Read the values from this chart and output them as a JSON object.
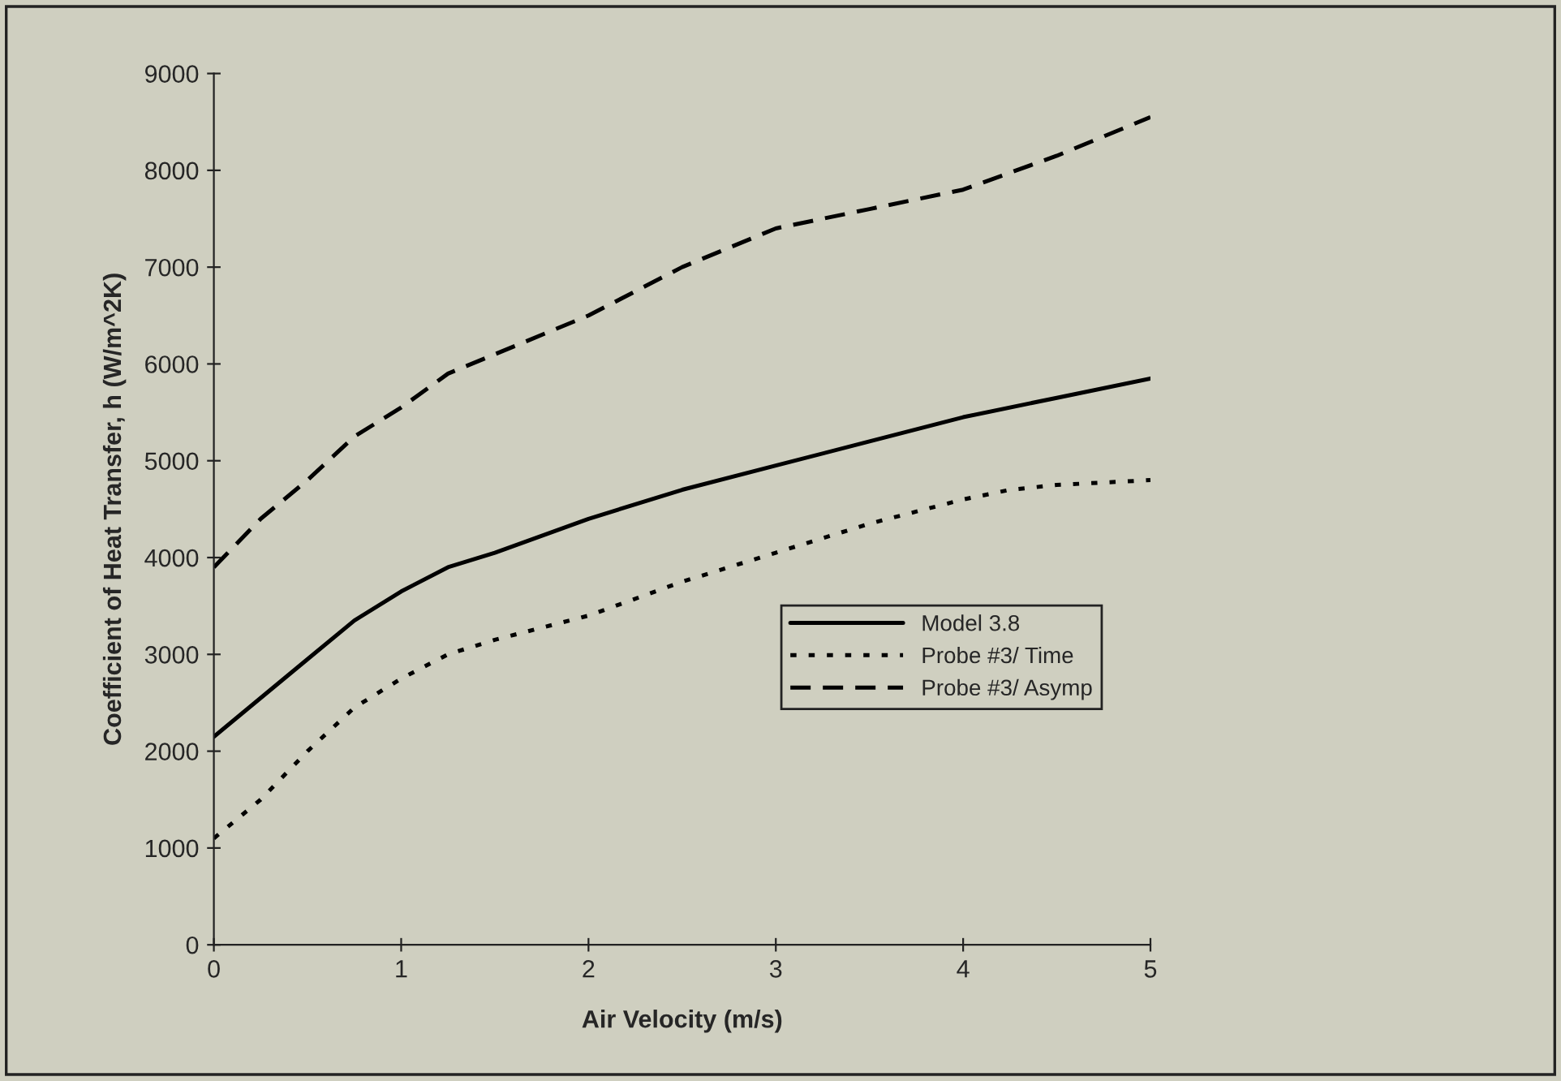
{
  "chart_data": {
    "type": "line",
    "xlabel": "Air Velocity (m/s)",
    "ylabel": "Coefficient of Heat Transfer, h (W/m^2K)",
    "xlim": [
      0,
      5
    ],
    "xticks": [
      0,
      1,
      2,
      3,
      4,
      5
    ],
    "ylim": [
      0,
      9000
    ],
    "yticks": [
      0,
      1000,
      2000,
      3000,
      4000,
      5000,
      6000,
      7000,
      8000,
      9000
    ],
    "grid": false,
    "legend": "right",
    "marker": "none",
    "series": [
      {
        "name": "Model 3.8",
        "color": "#000000",
        "line_style": "solid",
        "x": [
          0,
          0.25,
          0.5,
          0.75,
          1,
          1.25,
          1.5,
          2,
          2.5,
          3,
          3.5,
          4,
          4.5,
          5
        ],
        "values": [
          2150,
          2550,
          2950,
          3350,
          3650,
          3900,
          4050,
          4400,
          4700,
          4950,
          5200,
          5450,
          5650,
          5850
        ]
      },
      {
        "name": "Probe #3/ Time",
        "color": "#000000",
        "line_style": "dotted",
        "x": [
          0,
          0.25,
          0.5,
          0.75,
          1,
          1.25,
          1.5,
          2,
          2.5,
          3,
          3.5,
          4,
          4.25,
          4.5,
          5
        ],
        "values": [
          1100,
          1500,
          2000,
          2450,
          2750,
          3000,
          3150,
          3400,
          3750,
          4050,
          4350,
          4600,
          4700,
          4750,
          4800
        ]
      },
      {
        "name": "Probe #3/ Asymp",
        "color": "#000000",
        "line_style": "dashed",
        "x": [
          0,
          0.25,
          0.5,
          0.75,
          1,
          1.25,
          1.5,
          2,
          2.5,
          3,
          3.5,
          4,
          4.5,
          5
        ],
        "values": [
          3900,
          4400,
          4800,
          5250,
          5550,
          5900,
          6100,
          6500,
          7000,
          7400,
          7600,
          7800,
          8150,
          8550
        ]
      }
    ]
  }
}
